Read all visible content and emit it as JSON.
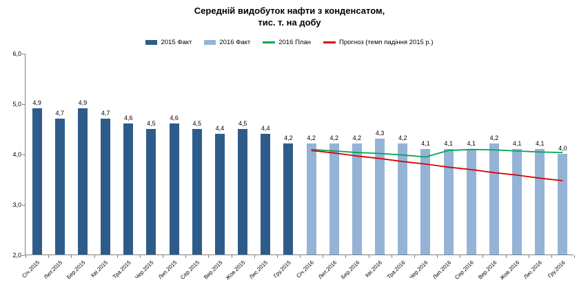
{
  "chart_data": {
    "type": "bar",
    "title_line1": "Середній видобуток нафти з конденсатом,",
    "title_line2": "тис. т. на добу",
    "ylim": [
      2.0,
      6.0
    ],
    "yticks": [
      6,
      5,
      4,
      3,
      2
    ],
    "grid": false,
    "legend_position": "top",
    "categories": [
      "Січ.2015",
      "Лют.2015",
      "Бер.2015",
      "Кві.2015",
      "Тра.2015",
      "Чер.2015",
      "Лип.2015",
      "Сер.2015",
      "Вер.2015",
      "Жов.2015",
      "Лис.2015",
      "Гру.2015",
      "Січ.2016",
      "Лют.2016",
      "Бер.2016",
      "Кві.2016",
      "Тра.2016",
      "Чер.2016",
      "Лип.2016",
      "Сер.2016",
      "Вер.2016",
      "Жов.2016",
      "Лис.2016",
      "Гру.2016"
    ],
    "series": [
      {
        "name": "2015 Факт",
        "type": "bar",
        "color": "#2e5c8a",
        "data_labels": true,
        "values": [
          4.9,
          4.7,
          4.9,
          4.7,
          4.6,
          4.5,
          4.6,
          4.5,
          4.4,
          4.5,
          4.4,
          4.2,
          null,
          null,
          null,
          null,
          null,
          null,
          null,
          null,
          null,
          null,
          null,
          null
        ]
      },
      {
        "name": "2016 Факт",
        "type": "bar",
        "color": "#95b3d7",
        "data_labels": true,
        "values": [
          null,
          null,
          null,
          null,
          null,
          null,
          null,
          null,
          null,
          null,
          null,
          null,
          4.2,
          4.2,
          4.2,
          4.3,
          4.2,
          4.1,
          4.1,
          4.1,
          4.2,
          4.1,
          4.1,
          4.0
        ]
      },
      {
        "name": "2016 План",
        "type": "line",
        "color": "#00a651",
        "data_labels": false,
        "values": [
          null,
          null,
          null,
          null,
          null,
          null,
          null,
          null,
          null,
          null,
          null,
          null,
          4.1,
          4.07,
          4.04,
          4.02,
          3.99,
          3.95,
          4.08,
          4.1,
          4.09,
          4.07,
          4.05,
          4.04
        ]
      },
      {
        "name": "Прогноз (темп падіння 2015 р.)",
        "type": "line",
        "color": "#dc0000",
        "data_labels": false,
        "values": [
          null,
          null,
          null,
          null,
          null,
          null,
          null,
          null,
          null,
          null,
          null,
          null,
          4.08,
          4.03,
          3.97,
          3.92,
          3.86,
          3.81,
          3.75,
          3.7,
          3.64,
          3.59,
          3.53,
          3.48
        ]
      }
    ]
  }
}
